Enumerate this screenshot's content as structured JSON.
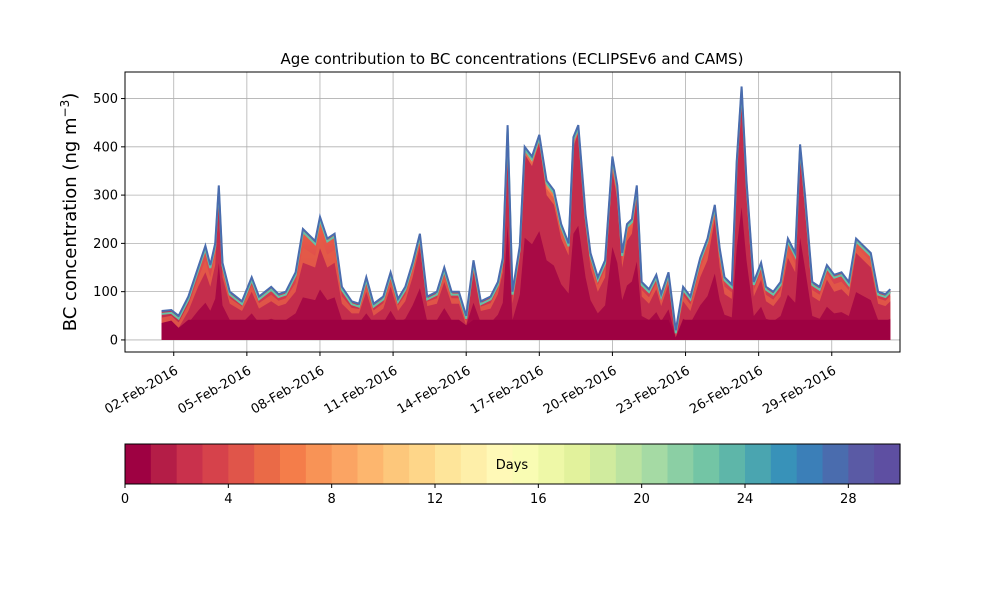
{
  "chart_data": {
    "type": "area",
    "title": "Age contribution to BC concentrations (ECLIPSEv6 and CAMS)",
    "ylabel_text": "BC concentration (ng m",
    "ylabel_exp": "−3",
    "ylabel_close": ")",
    "xlabel": "",
    "ylim": [
      -25,
      555
    ],
    "xlim": [
      0.0,
      31.8
    ],
    "yticks": [
      0,
      100,
      200,
      300,
      400,
      500
    ],
    "xticks": [
      {
        "label": "02-Feb-2016",
        "day": 2
      },
      {
        "label": "05-Feb-2016",
        "day": 5
      },
      {
        "label": "08-Feb-2016",
        "day": 8
      },
      {
        "label": "11-Feb-2016",
        "day": 11
      },
      {
        "label": "14-Feb-2016",
        "day": 14
      },
      {
        "label": "17-Feb-2016",
        "day": 17
      },
      {
        "label": "20-Feb-2016",
        "day": 20
      },
      {
        "label": "23-Feb-2016",
        "day": 23
      },
      {
        "label": "26-Feb-2016",
        "day": 26
      },
      {
        "label": "29-Feb-2016",
        "day": 29
      }
    ],
    "grid": true,
    "series": [
      {
        "total": [
          [
            1.5,
            60
          ],
          [
            1.9,
            62
          ],
          [
            2.2,
            50
          ],
          [
            2.6,
            90
          ],
          [
            3.0,
            150
          ],
          [
            3.3,
            195
          ],
          [
            3.5,
            155
          ],
          [
            3.7,
            200
          ],
          [
            3.85,
            320
          ],
          [
            4.0,
            160
          ],
          [
            4.3,
            100
          ],
          [
            4.8,
            80
          ],
          [
            5.2,
            130
          ],
          [
            5.5,
            90
          ],
          [
            6.0,
            110
          ],
          [
            6.3,
            95
          ],
          [
            6.6,
            100
          ],
          [
            7.0,
            140
          ],
          [
            7.3,
            230
          ],
          [
            7.8,
            205
          ],
          [
            8.0,
            255
          ],
          [
            8.3,
            210
          ],
          [
            8.6,
            220
          ],
          [
            8.9,
            110
          ],
          [
            9.3,
            80
          ],
          [
            9.6,
            75
          ],
          [
            9.9,
            130
          ],
          [
            10.2,
            75
          ],
          [
            10.6,
            90
          ],
          [
            10.9,
            140
          ],
          [
            11.2,
            85
          ],
          [
            11.5,
            110
          ],
          [
            11.8,
            160
          ],
          [
            12.1,
            220
          ],
          [
            12.4,
            90
          ],
          [
            12.8,
            100
          ],
          [
            13.1,
            150
          ],
          [
            13.4,
            100
          ],
          [
            13.7,
            100
          ],
          [
            14.0,
            50
          ],
          [
            14.3,
            165
          ],
          [
            14.6,
            80
          ],
          [
            15.0,
            90
          ],
          [
            15.3,
            120
          ],
          [
            15.5,
            170
          ],
          [
            15.7,
            445
          ],
          [
            15.9,
            100
          ],
          [
            16.2,
            195
          ],
          [
            16.4,
            400
          ],
          [
            16.7,
            380
          ],
          [
            17.0,
            425
          ],
          [
            17.3,
            330
          ],
          [
            17.6,
            310
          ],
          [
            17.9,
            240
          ],
          [
            18.2,
            200
          ],
          [
            18.4,
            420
          ],
          [
            18.6,
            445
          ],
          [
            18.9,
            260
          ],
          [
            19.1,
            180
          ],
          [
            19.4,
            130
          ],
          [
            19.7,
            165
          ],
          [
            20.0,
            380
          ],
          [
            20.2,
            320
          ],
          [
            20.4,
            180
          ],
          [
            20.6,
            240
          ],
          [
            20.8,
            250
          ],
          [
            21.0,
            320
          ],
          [
            21.2,
            120
          ],
          [
            21.5,
            105
          ],
          [
            21.8,
            135
          ],
          [
            22.0,
            95
          ],
          [
            22.3,
            140
          ],
          [
            22.6,
            20
          ],
          [
            22.9,
            110
          ],
          [
            23.2,
            90
          ],
          [
            23.6,
            170
          ],
          [
            23.9,
            210
          ],
          [
            24.2,
            280
          ],
          [
            24.4,
            190
          ],
          [
            24.6,
            130
          ],
          [
            24.9,
            115
          ],
          [
            25.1,
            370
          ],
          [
            25.3,
            525
          ],
          [
            25.5,
            330
          ],
          [
            25.8,
            120
          ],
          [
            26.1,
            160
          ],
          [
            26.3,
            110
          ],
          [
            26.6,
            100
          ],
          [
            26.9,
            120
          ],
          [
            27.2,
            210
          ],
          [
            27.5,
            180
          ],
          [
            27.7,
            405
          ],
          [
            27.9,
            300
          ],
          [
            28.2,
            120
          ],
          [
            28.5,
            110
          ],
          [
            28.8,
            155
          ],
          [
            29.1,
            135
          ],
          [
            29.4,
            140
          ],
          [
            29.7,
            120
          ],
          [
            30.0,
            210
          ],
          [
            30.3,
            195
          ],
          [
            30.6,
            180
          ],
          [
            30.9,
            100
          ],
          [
            31.2,
            95
          ],
          [
            31.4,
            105
          ]
        ],
        "base": [
          [
            1.5,
            35
          ],
          [
            1.9,
            40
          ],
          [
            2.2,
            25
          ],
          [
            2.6,
            60
          ],
          [
            3.0,
            110
          ],
          [
            3.3,
            140
          ],
          [
            3.5,
            110
          ],
          [
            3.7,
            155
          ],
          [
            3.85,
            290
          ],
          [
            4.0,
            130
          ],
          [
            4.3,
            75
          ],
          [
            4.8,
            60
          ],
          [
            5.2,
            100
          ],
          [
            5.5,
            65
          ],
          [
            6.0,
            80
          ],
          [
            6.3,
            70
          ],
          [
            6.6,
            75
          ],
          [
            7.0,
            100
          ],
          [
            7.3,
            160
          ],
          [
            7.8,
            150
          ],
          [
            8.0,
            190
          ],
          [
            8.3,
            150
          ],
          [
            8.6,
            160
          ],
          [
            8.9,
            75
          ],
          [
            9.3,
            55
          ],
          [
            9.6,
            55
          ],
          [
            9.9,
            100
          ],
          [
            10.2,
            50
          ],
          [
            10.6,
            65
          ],
          [
            10.9,
            110
          ],
          [
            11.2,
            60
          ],
          [
            11.5,
            80
          ],
          [
            11.8,
            130
          ],
          [
            12.1,
            195
          ],
          [
            12.4,
            70
          ],
          [
            12.8,
            75
          ],
          [
            13.1,
            120
          ],
          [
            13.4,
            75
          ],
          [
            13.7,
            75
          ],
          [
            14.0,
            30
          ],
          [
            14.3,
            140
          ],
          [
            14.6,
            60
          ],
          [
            15.0,
            65
          ],
          [
            15.3,
            95
          ],
          [
            15.5,
            140
          ],
          [
            15.7,
            430
          ],
          [
            15.9,
            75
          ],
          [
            16.2,
            170
          ],
          [
            16.4,
            385
          ],
          [
            16.7,
            360
          ],
          [
            17.0,
            410
          ],
          [
            17.3,
            300
          ],
          [
            17.6,
            280
          ],
          [
            17.9,
            210
          ],
          [
            18.2,
            175
          ],
          [
            18.4,
            400
          ],
          [
            18.6,
            430
          ],
          [
            18.9,
            235
          ],
          [
            19.1,
            150
          ],
          [
            19.4,
            100
          ],
          [
            19.7,
            130
          ],
          [
            20.0,
            350
          ],
          [
            20.2,
            290
          ],
          [
            20.4,
            150
          ],
          [
            20.6,
            205
          ],
          [
            20.8,
            220
          ],
          [
            21.0,
            295
          ],
          [
            21.2,
            90
          ],
          [
            21.5,
            75
          ],
          [
            21.8,
            105
          ],
          [
            22.0,
            70
          ],
          [
            22.3,
            115
          ],
          [
            22.6,
            5
          ],
          [
            22.9,
            80
          ],
          [
            23.2,
            60
          ],
          [
            23.6,
            130
          ],
          [
            23.9,
            165
          ],
          [
            24.2,
            250
          ],
          [
            24.4,
            150
          ],
          [
            24.6,
            95
          ],
          [
            24.9,
            85
          ],
          [
            25.1,
            345
          ],
          [
            25.3,
            500
          ],
          [
            25.5,
            300
          ],
          [
            25.8,
            90
          ],
          [
            26.1,
            125
          ],
          [
            26.3,
            80
          ],
          [
            26.6,
            70
          ],
          [
            26.9,
            90
          ],
          [
            27.2,
            170
          ],
          [
            27.5,
            140
          ],
          [
            27.7,
            385
          ],
          [
            27.9,
            270
          ],
          [
            28.2,
            90
          ],
          [
            28.5,
            80
          ],
          [
            28.8,
            125
          ],
          [
            29.1,
            100
          ],
          [
            29.4,
            105
          ],
          [
            29.7,
            90
          ],
          [
            30.0,
            180
          ],
          [
            30.3,
            165
          ],
          [
            30.6,
            150
          ],
          [
            30.9,
            75
          ],
          [
            31.2,
            70
          ],
          [
            31.4,
            80
          ]
        ]
      }
    ],
    "colorbar": {
      "label": "Days",
      "min": 0,
      "max": 30,
      "ticks": [
        0,
        4,
        8,
        12,
        16,
        20,
        24,
        28
      ],
      "colors": [
        "#9e0142",
        "#b41d47",
        "#c9314c",
        "#d6424b",
        "#e0554a",
        "#ea6a47",
        "#f47d4a",
        "#f89356",
        "#fba463",
        "#fdb66e",
        "#fdc77b",
        "#fed689",
        "#fee59a",
        "#feefa9",
        "#fff9b7",
        "#f9fcb3",
        "#eef8a7",
        "#e2f29c",
        "#d0eb9e",
        "#bbe3a0",
        "#a5daa4",
        "#8bcfa4",
        "#73c5a5",
        "#5eb6a9",
        "#4aa5b0",
        "#3892b9",
        "#3b7fb8",
        "#4a6cae",
        "#5a5aa5",
        "#5e4fa2"
      ]
    }
  }
}
